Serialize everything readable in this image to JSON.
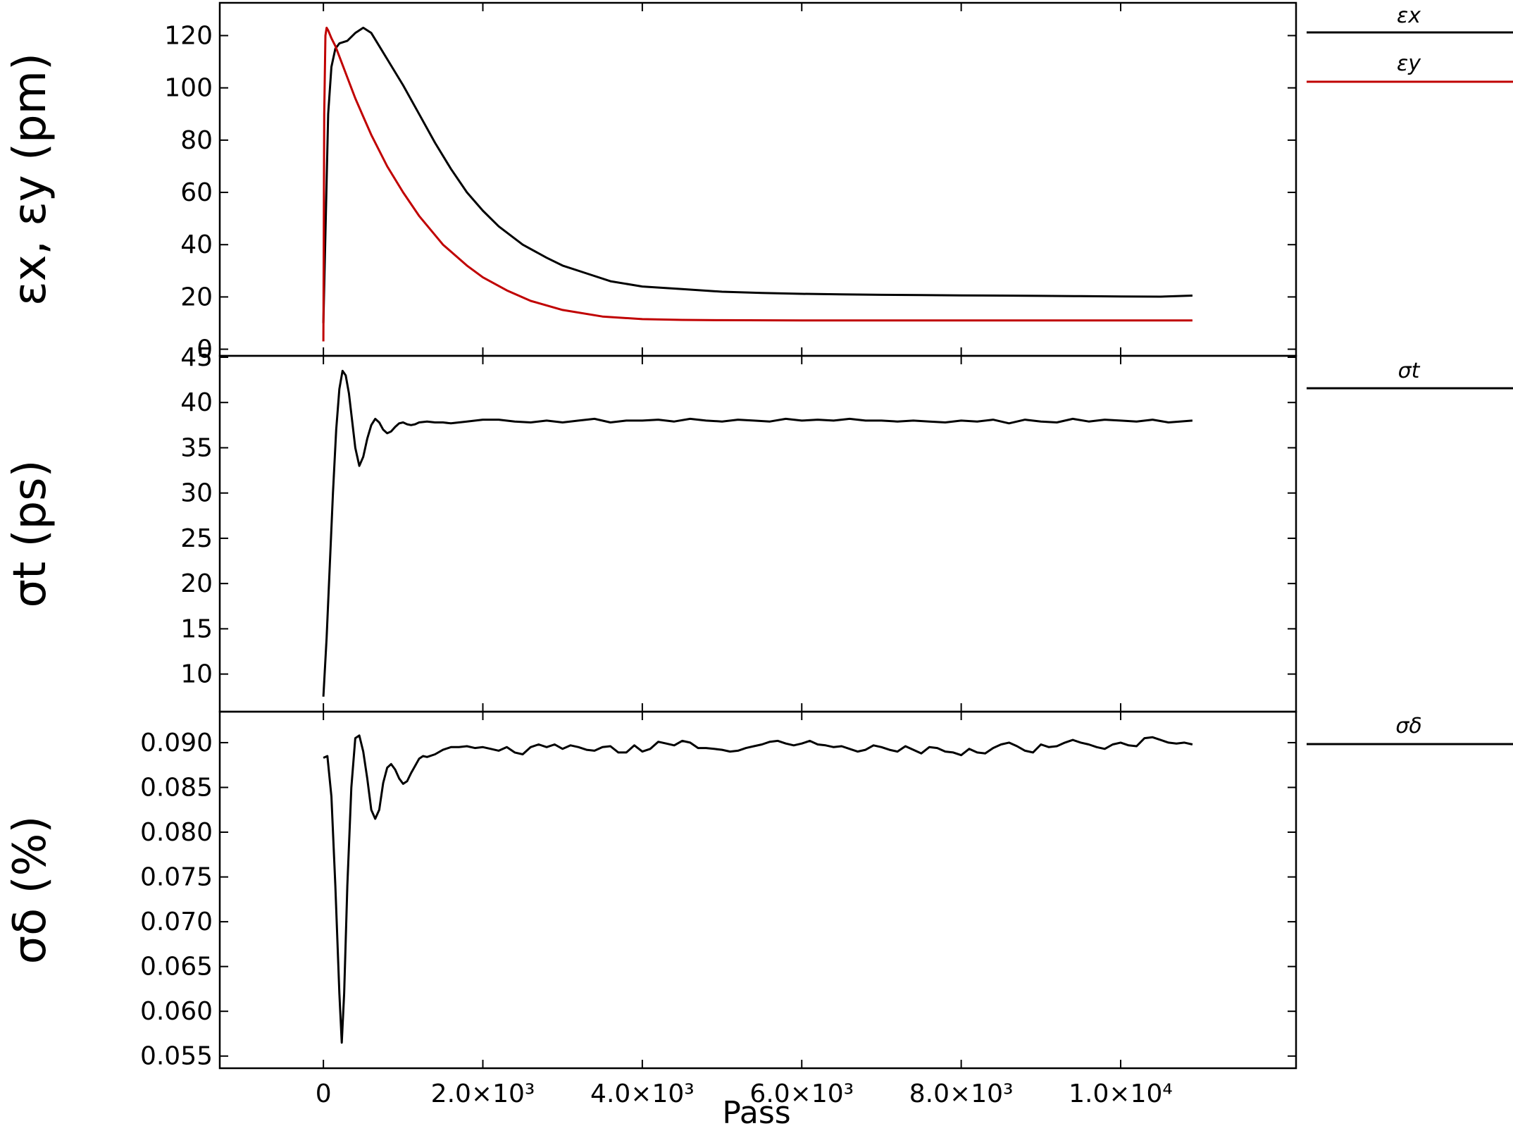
{
  "chart_data": [
    {
      "type": "line",
      "ylabel": "εx, εy (pm)",
      "xlim": [
        -1300,
        12200
      ],
      "ylim": [
        -2,
        132
      ],
      "yticks": [
        {
          "value": 0,
          "label": "0"
        },
        {
          "value": 20,
          "label": "20"
        },
        {
          "value": 40,
          "label": "40"
        },
        {
          "value": 60,
          "label": "60"
        },
        {
          "value": 80,
          "label": "80"
        },
        {
          "value": 100,
          "label": "100"
        },
        {
          "value": 120,
          "label": "120"
        }
      ],
      "series": [
        {
          "name": "εx",
          "color": "#000000",
          "x": [
            0,
            30,
            60,
            100,
            150,
            200,
            300,
            400,
            500,
            600,
            700,
            800,
            1000,
            1200,
            1400,
            1600,
            1800,
            2000,
            2200,
            2500,
            2800,
            3000,
            3300,
            3600,
            4000,
            4500,
            5000,
            5500,
            6000,
            6500,
            7000,
            7500,
            8000,
            8500,
            9000,
            9500,
            10000,
            10500,
            10900
          ],
          "y": [
            10,
            50,
            90,
            108,
            115,
            117,
            118,
            121,
            123,
            121,
            116,
            111,
            101,
            90,
            79,
            69,
            60,
            53,
            47,
            40,
            35,
            32,
            29,
            26,
            24,
            23,
            22,
            21.5,
            21.2,
            21,
            20.8,
            20.7,
            20.6,
            20.5,
            20.4,
            20.3,
            20.2,
            20.1,
            20.5
          ]
        },
        {
          "name": "εy",
          "color": "#c00000",
          "x": [
            0,
            10,
            25,
            40,
            60,
            100,
            150,
            200,
            300,
            400,
            500,
            600,
            800,
            1000,
            1200,
            1500,
            1800,
            2000,
            2300,
            2600,
            3000,
            3500,
            4000,
            4500,
            5000,
            6000,
            7000,
            8000,
            9000,
            10000,
            10900
          ],
          "y": [
            3,
            90,
            120,
            123,
            122,
            119,
            116,
            112,
            104,
            96,
            89,
            82,
            70,
            60,
            51,
            40,
            32,
            27.5,
            22.5,
            18.5,
            15,
            12.5,
            11.5,
            11.2,
            11.1,
            11,
            11,
            11,
            11,
            11,
            11
          ]
        }
      ]
    },
    {
      "type": "line",
      "ylabel": "σt (ps)",
      "xlim": [
        -1300,
        12200
      ],
      "ylim": [
        6,
        45
      ],
      "yticks": [
        {
          "value": 10,
          "label": "10"
        },
        {
          "value": 15,
          "label": "15"
        },
        {
          "value": 20,
          "label": "20"
        },
        {
          "value": 25,
          "label": "25"
        },
        {
          "value": 30,
          "label": "30"
        },
        {
          "value": 35,
          "label": "35"
        },
        {
          "value": 40,
          "label": "40"
        },
        {
          "value": 45,
          "label": "45"
        }
      ],
      "series": [
        {
          "name": "σt",
          "color": "#000000",
          "x": [
            0,
            40,
            80,
            120,
            160,
            200,
            240,
            280,
            320,
            360,
            400,
            450,
            500,
            550,
            600,
            650,
            700,
            750,
            800,
            850,
            900,
            950,
            1000,
            1050,
            1100,
            1150,
            1200,
            1300,
            1400,
            1500,
            1600,
            1800,
            2000,
            2200,
            2400,
            2600,
            2800,
            3000,
            3200,
            3400,
            3600,
            3800,
            4000,
            4200,
            4400,
            4600,
            4800,
            5000,
            5200,
            5400,
            5600,
            5800,
            6000,
            6200,
            6400,
            6600,
            6800,
            7000,
            7200,
            7400,
            7600,
            7800,
            8000,
            8200,
            8400,
            8600,
            8800,
            9000,
            9200,
            9400,
            9600,
            9800,
            10000,
            10200,
            10400,
            10600,
            10900
          ],
          "y": [
            7.5,
            14,
            22,
            30,
            37,
            41.5,
            43.5,
            43,
            41,
            38,
            35,
            33,
            34,
            36,
            37.5,
            38.2,
            37.8,
            37,
            36.6,
            36.8,
            37.3,
            37.7,
            37.8,
            37.6,
            37.5,
            37.6,
            37.8,
            37.9,
            37.8,
            37.8,
            37.7,
            37.9,
            38.1,
            38.1,
            37.9,
            37.8,
            38.0,
            37.8,
            38.0,
            38.2,
            37.8,
            38.0,
            38.0,
            38.1,
            37.9,
            38.2,
            38.0,
            37.9,
            38.1,
            38.0,
            37.9,
            38.2,
            38.0,
            38.1,
            38.0,
            38.2,
            38.0,
            38.0,
            37.9,
            38.0,
            37.9,
            37.8,
            38.0,
            37.9,
            38.1,
            37.7,
            38.1,
            37.9,
            37.8,
            38.2,
            37.9,
            38.1,
            38.0,
            37.9,
            38.1,
            37.8,
            38.0
          ]
        }
      ]
    },
    {
      "type": "line",
      "ylabel": "σδ (%)",
      "xlabel": "Pass",
      "xlim": [
        -1300,
        12200
      ],
      "ylim": [
        0.0538,
        0.0933
      ],
      "yticks": [
        {
          "value": 0.055,
          "label": "0.055"
        },
        {
          "value": 0.06,
          "label": "0.060"
        },
        {
          "value": 0.065,
          "label": "0.065"
        },
        {
          "value": 0.07,
          "label": "0.070"
        },
        {
          "value": 0.075,
          "label": "0.075"
        },
        {
          "value": 0.08,
          "label": "0.080"
        },
        {
          "value": 0.085,
          "label": "0.085"
        },
        {
          "value": 0.09,
          "label": "0.090"
        }
      ],
      "xticks": [
        {
          "value": 0,
          "label": "0"
        },
        {
          "value": 2000,
          "label": "2.0×10³"
        },
        {
          "value": 4000,
          "label": "4.0×10³"
        },
        {
          "value": 6000,
          "label": "6.0×10³"
        },
        {
          "value": 8000,
          "label": "8.0×10³"
        },
        {
          "value": 10000,
          "label": "1.0×10⁴"
        }
      ],
      "series": [
        {
          "name": "σδ",
          "color": "#000000",
          "x": [
            0,
            50,
            100,
            150,
            200,
            230,
            260,
            300,
            350,
            400,
            450,
            500,
            550,
            600,
            650,
            700,
            750,
            800,
            850,
            900,
            950,
            1000,
            1050,
            1100,
            1150,
            1200,
            1250,
            1300,
            1400,
            1500,
            1600,
            1700,
            1800,
            1900,
            2000,
            2100,
            2200,
            2300,
            2400,
            2500,
            2600,
            2700,
            2800,
            2900,
            3000,
            3100,
            3200,
            3300,
            3400,
            3500,
            3600,
            3700,
            3800,
            3900,
            4000,
            4100,
            4200,
            4300,
            4400,
            4500,
            4600,
            4700,
            4800,
            4900,
            5000,
            5100,
            5200,
            5300,
            5400,
            5500,
            5600,
            5700,
            5800,
            5900,
            6000,
            6100,
            6200,
            6300,
            6400,
            6500,
            6600,
            6700,
            6800,
            6900,
            7000,
            7100,
            7200,
            7300,
            7400,
            7500,
            7600,
            7700,
            7800,
            7900,
            8000,
            8100,
            8200,
            8300,
            8400,
            8500,
            8600,
            8700,
            8800,
            8900,
            9000,
            9100,
            9200,
            9300,
            9400,
            9500,
            9600,
            9700,
            9800,
            9900,
            10000,
            10100,
            10200,
            10300,
            10400,
            10500,
            10600,
            10700,
            10800,
            10900
          ],
          "y": [
            0.0883,
            0.0885,
            0.084,
            0.074,
            0.062,
            0.0565,
            0.062,
            0.074,
            0.085,
            0.0905,
            0.0908,
            0.089,
            0.086,
            0.0825,
            0.0815,
            0.0825,
            0.0855,
            0.0872,
            0.0876,
            0.087,
            0.086,
            0.0854,
            0.0857,
            0.0866,
            0.0874,
            0.0882,
            0.0885,
            0.0884,
            0.0887,
            0.0892,
            0.0895,
            0.0895,
            0.0896,
            0.0894,
            0.0895,
            0.0893,
            0.0891,
            0.0895,
            0.0889,
            0.0887,
            0.0895,
            0.0898,
            0.0895,
            0.0898,
            0.0893,
            0.0897,
            0.0895,
            0.0892,
            0.0891,
            0.0895,
            0.0896,
            0.0889,
            0.0889,
            0.0897,
            0.089,
            0.0893,
            0.0901,
            0.0899,
            0.0897,
            0.0902,
            0.09,
            0.0894,
            0.0894,
            0.0893,
            0.0892,
            0.089,
            0.0891,
            0.0894,
            0.0896,
            0.0898,
            0.0901,
            0.0902,
            0.0899,
            0.0897,
            0.0899,
            0.0902,
            0.0898,
            0.0897,
            0.0895,
            0.0896,
            0.0893,
            0.089,
            0.0892,
            0.0897,
            0.0895,
            0.0892,
            0.089,
            0.0896,
            0.0892,
            0.0888,
            0.0895,
            0.0894,
            0.089,
            0.0889,
            0.0886,
            0.0893,
            0.0889,
            0.0888,
            0.0894,
            0.0898,
            0.09,
            0.0896,
            0.0891,
            0.0889,
            0.0898,
            0.0895,
            0.0896,
            0.09,
            0.0903,
            0.09,
            0.0898,
            0.0895,
            0.0893,
            0.0898,
            0.09,
            0.0897,
            0.0896,
            0.0905,
            0.0906,
            0.0903,
            0.09,
            0.0899,
            0.09,
            0.0898
          ]
        }
      ]
    }
  ]
}
